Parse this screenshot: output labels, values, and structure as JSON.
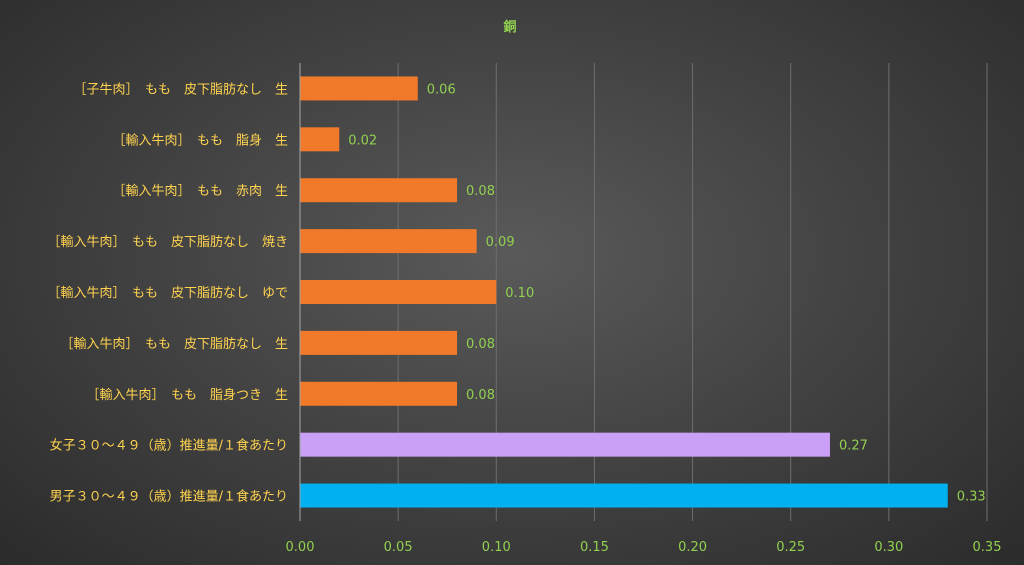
{
  "chart_data": {
    "type": "bar",
    "orientation": "horizontal",
    "title": "銅",
    "categories": [
      "［子牛肉］　もも　皮下脂肪なし　生",
      "［輸入牛肉］　もも　脂身　生",
      "［輸入牛肉］　もも　赤肉　生",
      "［輸入牛肉］　もも　皮下脂肪なし　焼き",
      "［輸入牛肉］　もも　皮下脂肪なし　ゆで",
      "［輸入牛肉］　もも　皮下脂肪なし　生",
      "［輸入牛肉］　もも　脂身つき　生",
      "女子３０～４９（歳）推進量/１食あたり",
      "男子３０～４９（歳）推進量/１食あたり"
    ],
    "values": [
      0.06,
      0.02,
      0.08,
      0.09,
      0.1,
      0.08,
      0.08,
      0.27,
      0.33
    ],
    "value_labels": [
      "0.06",
      "0.02",
      "0.08",
      "0.09",
      "0.10",
      "0.08",
      "0.08",
      "0.27",
      "0.33"
    ],
    "bar_colors": [
      "#f07a2a",
      "#f07a2a",
      "#f07a2a",
      "#f07a2a",
      "#f07a2a",
      "#f07a2a",
      "#f07a2a",
      "#c9a0f5",
      "#00b0f0"
    ],
    "xlim": [
      0,
      0.35
    ],
    "xticks": [
      "0.00",
      "0.05",
      "0.10",
      "0.15",
      "0.20",
      "0.25",
      "0.30",
      "0.35"
    ],
    "xtick_values": [
      0,
      0.05,
      0.1,
      0.15,
      0.2,
      0.25,
      0.3,
      0.35
    ],
    "grid": true,
    "legend": "none"
  }
}
